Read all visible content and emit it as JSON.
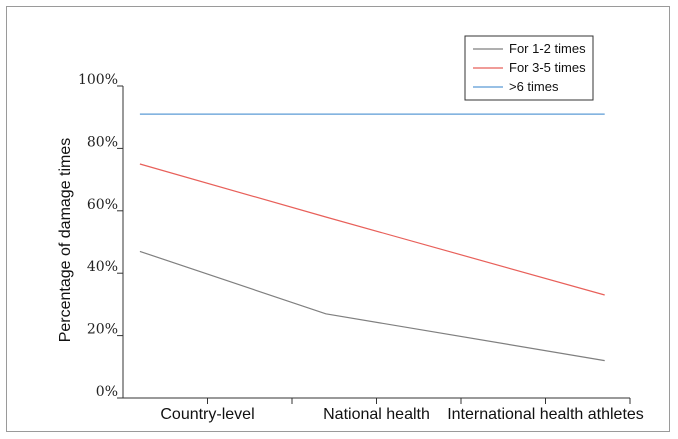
{
  "chart_data": {
    "type": "line",
    "title": "",
    "xlabel": "",
    "ylabel": "Percentage of damage times",
    "categories": [
      "Country-level",
      "National health",
      "International health athletes"
    ],
    "y_tick_labels": [
      "0%",
      "20%",
      "40%",
      "60%",
      "80%",
      "100%"
    ],
    "ylim": [
      0,
      100
    ],
    "grid": false,
    "legend_position": "top-right",
    "series": [
      {
        "name": "For 1-2 times",
        "color": "#7f7f7f",
        "x": [
          0.1,
          1.2,
          2.85
        ],
        "values": [
          47,
          27,
          12
        ]
      },
      {
        "name": "For 3-5 times",
        "color": "#e8605a",
        "x": [
          0.1,
          1.2,
          2.85
        ],
        "values": [
          75,
          58,
          33
        ]
      },
      {
        "name": ">6 times",
        "color": "#5b9bd5",
        "x": [
          0.1,
          1.2,
          2.85
        ],
        "values": [
          91,
          91,
          91
        ]
      }
    ]
  }
}
